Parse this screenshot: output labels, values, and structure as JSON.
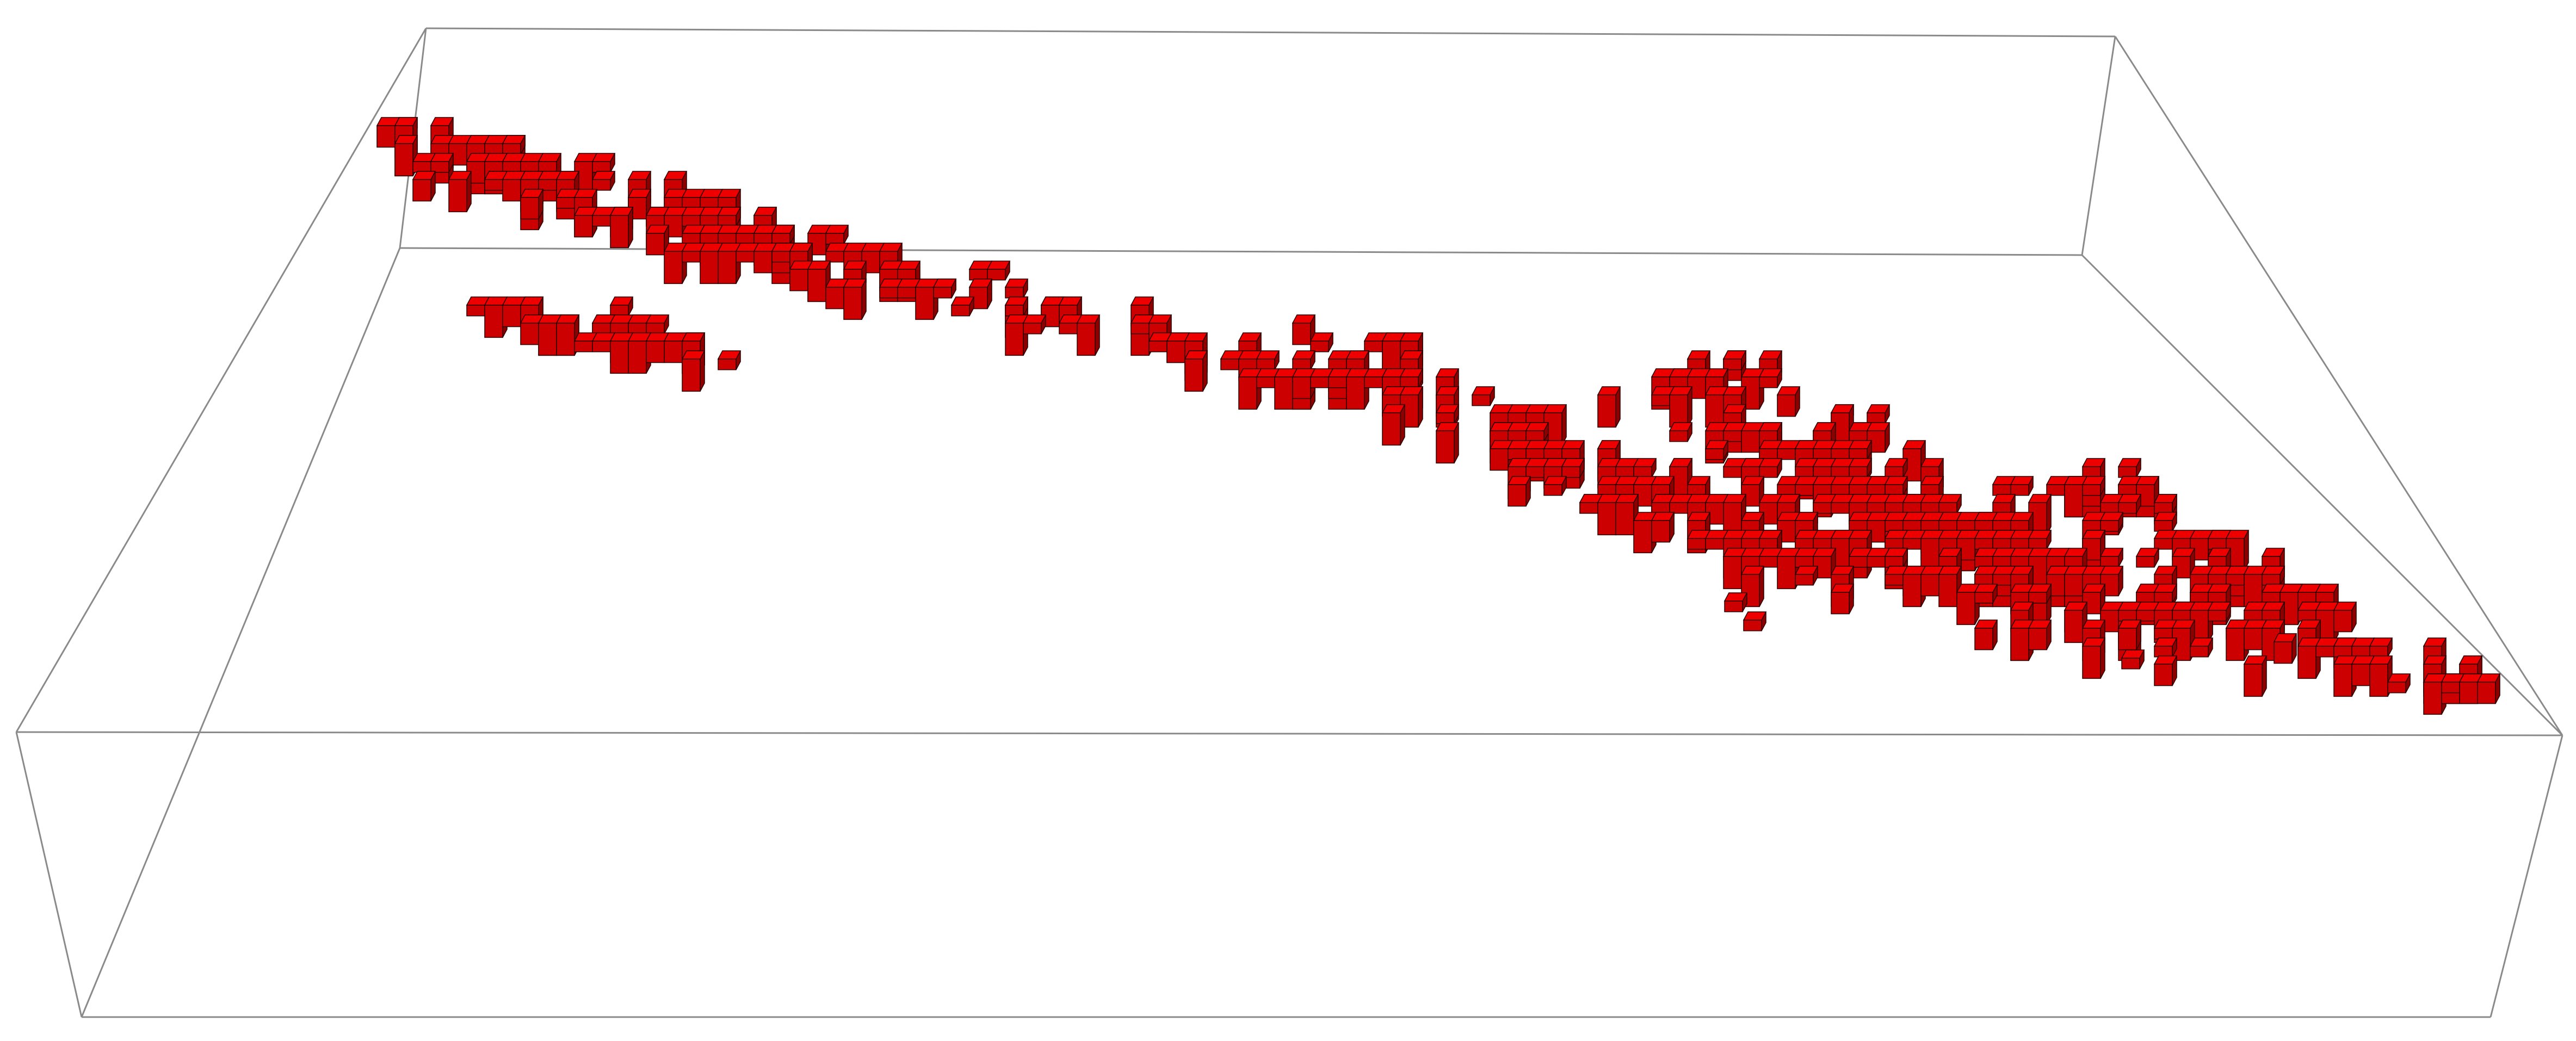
{
  "scene": {
    "background_color": "#ffffff",
    "bounding_box_color": "#8a8a8a",
    "voxel_top_color": "#ee0000",
    "voxel_front_color": "#cc0000",
    "voxel_side_color": "#8e0000",
    "voxel_edge_color": "#2a0000",
    "object": "voxel-cluster"
  }
}
